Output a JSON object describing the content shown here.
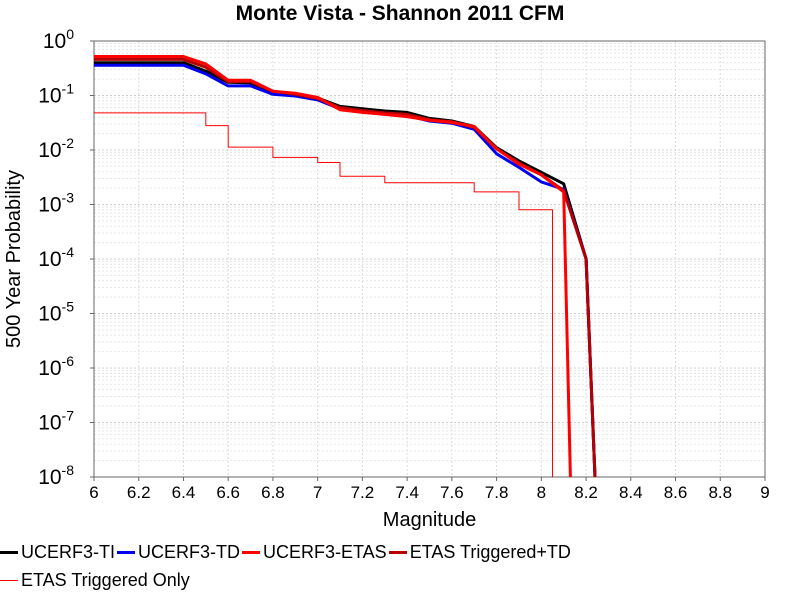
{
  "chart_data": {
    "type": "line",
    "title": "Monte Vista - Shannon 2011 CFM",
    "xlabel": "Magnitude",
    "ylabel": "500 Year Probability",
    "xlim": [
      6,
      9
    ],
    "ylim": [
      1e-08,
      1
    ],
    "yscale": "log",
    "grid": true,
    "legend_position": "bottom",
    "x_ticks": [
      "6",
      "6.2",
      "6.4",
      "6.6",
      "6.8",
      "7",
      "7.2",
      "7.4",
      "7.6",
      "7.8",
      "8",
      "8.2",
      "8.4",
      "8.6",
      "8.8",
      "9"
    ],
    "y_ticks": [
      {
        "base": "10",
        "exp": "0"
      },
      {
        "base": "10",
        "exp": "-1"
      },
      {
        "base": "10",
        "exp": "-2"
      },
      {
        "base": "10",
        "exp": "-3"
      },
      {
        "base": "10",
        "exp": "-4"
      },
      {
        "base": "10",
        "exp": "-5"
      },
      {
        "base": "10",
        "exp": "-6"
      },
      {
        "base": "10",
        "exp": "-7"
      },
      {
        "base": "10",
        "exp": "-8"
      }
    ],
    "series": [
      {
        "name": "UCERF3-TI",
        "color": "#000000",
        "width": 3,
        "step": false,
        "x": [
          6.0,
          6.1,
          6.2,
          6.3,
          6.4,
          6.5,
          6.6,
          6.7,
          6.8,
          6.9,
          7.0,
          7.1,
          7.2,
          7.3,
          7.4,
          7.5,
          7.6,
          7.7,
          7.8,
          7.9,
          8.0,
          8.1,
          8.2,
          8.24
        ],
        "y": [
          0.4,
          0.4,
          0.4,
          0.4,
          0.4,
          0.28,
          0.175,
          0.17,
          0.115,
          0.105,
          0.09,
          0.063,
          0.057,
          0.052,
          0.049,
          0.038,
          0.034,
          0.027,
          0.011,
          0.0063,
          0.0039,
          0.0024,
          0.0001,
          1e-08
        ]
      },
      {
        "name": "UCERF3-TD",
        "color": "#0000ee",
        "width": 3,
        "step": false,
        "x": [
          6.0,
          6.1,
          6.2,
          6.3,
          6.4,
          6.5,
          6.6,
          6.7,
          6.8,
          6.9,
          7.0,
          7.1,
          7.2,
          7.3,
          7.4,
          7.5,
          7.6,
          7.7,
          7.8,
          7.9,
          8.0,
          8.1,
          8.2,
          8.24
        ],
        "y": [
          0.36,
          0.36,
          0.36,
          0.36,
          0.36,
          0.25,
          0.15,
          0.15,
          0.105,
          0.098,
          0.083,
          0.057,
          0.051,
          0.046,
          0.043,
          0.034,
          0.031,
          0.024,
          0.0085,
          0.0048,
          0.0026,
          0.0019,
          0.0001,
          1e-08
        ]
      },
      {
        "name": "UCERF3-ETAS",
        "color": "#ff0000",
        "width": 3,
        "step": false,
        "x": [
          6.0,
          6.1,
          6.2,
          6.3,
          6.4,
          6.5,
          6.6,
          6.7,
          6.8,
          6.9,
          7.0,
          7.1,
          7.2,
          7.3,
          7.4,
          7.5,
          7.6,
          7.7,
          7.8,
          7.9,
          8.0,
          8.1,
          8.13
        ],
        "y": [
          0.52,
          0.52,
          0.52,
          0.52,
          0.52,
          0.38,
          0.19,
          0.19,
          0.12,
          0.11,
          0.092,
          0.055,
          0.049,
          0.045,
          0.041,
          0.035,
          0.032,
          0.027,
          0.0105,
          0.0055,
          0.0035,
          0.0017,
          1e-08
        ]
      },
      {
        "name": "ETAS Triggered+TD",
        "color": "#b40000",
        "width": 3,
        "step": false,
        "x": [
          6.0,
          6.1,
          6.2,
          6.3,
          6.4,
          6.5,
          6.6,
          6.7,
          6.8,
          6.9,
          7.0,
          7.1,
          7.2,
          7.3,
          7.4,
          7.5,
          7.6,
          7.7,
          7.8,
          7.9,
          8.0,
          8.1,
          8.2,
          8.24
        ],
        "y": [
          0.46,
          0.46,
          0.46,
          0.46,
          0.46,
          0.33,
          0.18,
          0.18,
          0.12,
          0.105,
          0.088,
          0.06,
          0.053,
          0.048,
          0.045,
          0.036,
          0.033,
          0.026,
          0.0105,
          0.0058,
          0.0035,
          0.0018,
          0.0001,
          1e-08
        ]
      },
      {
        "name": "ETAS Triggered Only",
        "color": "#ff0000",
        "width": 1,
        "step": true,
        "x": [
          6.0,
          6.1,
          6.2,
          6.3,
          6.4,
          6.5,
          6.6,
          6.7,
          6.8,
          6.9,
          7.0,
          7.1,
          7.2,
          7.3,
          7.4,
          7.5,
          7.6,
          7.7,
          7.8,
          7.9,
          8.0,
          8.05
        ],
        "y": [
          0.048,
          0.048,
          0.048,
          0.048,
          0.048,
          0.028,
          0.0113,
          0.0113,
          0.0073,
          0.0073,
          0.0059,
          0.0033,
          0.0033,
          0.0025,
          0.0025,
          0.0025,
          0.0025,
          0.0017,
          0.0017,
          0.0008,
          0.0008,
          1e-08
        ]
      }
    ]
  }
}
